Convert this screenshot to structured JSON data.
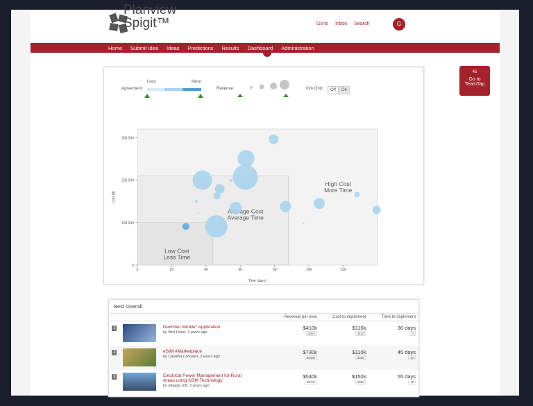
{
  "header": {
    "logo_line1": "Planview",
    "logo_line2": "Spigit™",
    "links": [
      "Go to",
      "Inbox",
      "Search"
    ],
    "avatar": "G"
  },
  "nav": [
    "Home",
    "Submit Idea",
    "Ideas",
    "Predictions",
    "Results",
    "Dashboard",
    "Administration"
  ],
  "filters": {
    "agreement_label": "Agreement:",
    "less": "Less",
    "more": "More",
    "revenue_label": "Revenue:",
    "info_grid_label": "Info Grid:",
    "off": "Off",
    "on": "On"
  },
  "side_button": {
    "count": "45",
    "label": "Go to TeamTap"
  },
  "chart_data": {
    "type": "scatter",
    "x_label": "Time (days)",
    "y_label": "Cost ($)",
    "xlim": [
      0,
      140
    ],
    "ylim": [
      0,
      320000
    ],
    "xticks": [
      0,
      20,
      40,
      60,
      80,
      100,
      120
    ],
    "yticks": [
      0,
      {
        "value": 100000,
        "label": "100,000"
      },
      {
        "value": 200000,
        "label": "200,000"
      },
      {
        "value": 300000,
        "label": "300,000"
      }
    ],
    "series": [
      {
        "color": "#a9d4ec",
        "x": [
          79.4,
          63.3,
          37.9,
          62.9,
          48,
          46.4,
          54.4,
          34.3,
          57.3,
          86.3,
          106,
          128,
          139.5,
          46,
          97,
          35.5
        ],
        "values": [
          296000,
          251000,
          200000,
          207000,
          179000,
          163000,
          199000,
          150000,
          134000,
          138000,
          145000,
          166000,
          130000,
          91000,
          98000,
          122000
        ],
        "sizes": [
          7,
          12,
          14,
          18,
          7,
          5,
          2,
          2,
          9,
          8,
          8,
          4,
          6,
          16,
          1,
          1
        ]
      },
      {
        "color": "#5fa8dc",
        "x": [
          28.2
        ],
        "values": [
          91000
        ],
        "sizes": [
          5
        ]
      }
    ],
    "regions": [
      {
        "lines": [
          "Low Cost",
          "Less Time"
        ],
        "x_max": 44,
        "y_max": 100000
      },
      {
        "lines": [
          "Average Cost",
          "Average Time"
        ],
        "x_max": 88,
        "y_max": 210000
      },
      {
        "lines": [
          "High Cost",
          "More Time"
        ]
      }
    ]
  },
  "table": {
    "title": "Best Overall",
    "columns": [
      "Revenue per year",
      "Cost to implement",
      "Time to implement"
    ],
    "rows": [
      {
        "rank": "1",
        "title": "NextGen Mobile* Application",
        "byline": "by Ben Hood, 3 years ago",
        "cells": [
          [
            "$410k",
            "$41k"
          ],
          [
            "$110k",
            "$11k"
          ],
          [
            "30 days",
            "0"
          ]
        ]
      },
      {
        "rank": "2",
        "title": "eSIM #Marketplace",
        "byline": "by Catalina Lahusen, 3 years ago",
        "cells": [
          [
            "$730k",
            "$300k"
          ],
          [
            "$110k",
            "$34k"
          ],
          [
            "45 days",
            "10"
          ]
        ]
      },
      {
        "rank": "3",
        "title": "Electrical Power Management for Rural Areas using GSM Technology",
        "byline": "by Maggie Sift, 3 years ago",
        "cells": [
          [
            "$540k",
            "$110k"
          ],
          [
            "$150k",
            "$36k"
          ],
          [
            "55 days",
            "10"
          ]
        ]
      }
    ]
  }
}
